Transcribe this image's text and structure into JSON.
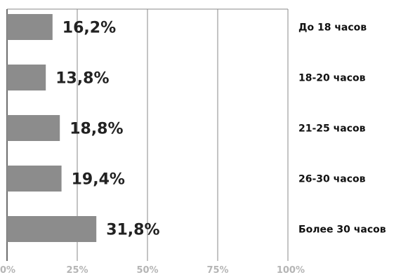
{
  "chart_data": {
    "type": "bar",
    "orientation": "horizontal",
    "categories": [
      "До 18 часов",
      "18-20 часов",
      "21-25 часов",
      "26-30 часов",
      "Более 30 часов"
    ],
    "values": [
      16.2,
      13.8,
      18.8,
      19.4,
      31.8
    ],
    "data_labels": [
      "16,2%",
      "13,8%",
      "18,8%",
      "19,4%",
      "31,8%"
    ],
    "xlim": [
      0,
      100
    ],
    "x_ticks": [
      0,
      25,
      50,
      75,
      100
    ],
    "x_tick_labels": [
      "0%",
      "25%",
      "50%",
      "75%",
      "100%"
    ],
    "grid": true,
    "colors": {
      "bar": "#8c8c8c",
      "grid": "#8a8a8a",
      "label": "#222222",
      "tick": "#b5b5b5"
    }
  }
}
